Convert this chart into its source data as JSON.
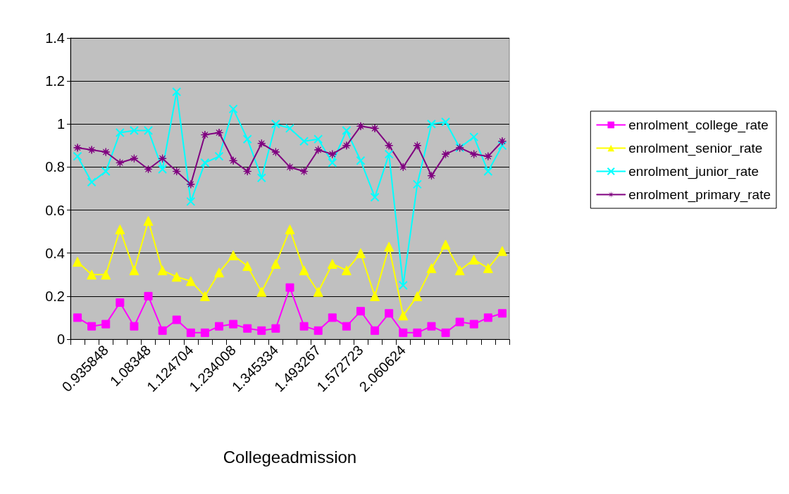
{
  "chart_data": {
    "type": "line",
    "xlabel": "Collegeadmission",
    "categories": [
      null,
      null,
      "0.935848",
      null,
      null,
      "1.08348",
      null,
      null,
      "1.124704",
      null,
      null,
      "1.234008",
      null,
      null,
      "1.345334",
      null,
      null,
      "1.493267",
      null,
      null,
      "1.572723",
      null,
      null,
      "2.060624",
      null,
      null,
      null,
      null,
      null,
      null,
      null
    ],
    "series": [
      {
        "name": "enrolment_college_rate",
        "color": "#ff00ff",
        "marker": "square",
        "values": [
          0.1,
          0.06,
          0.07,
          0.17,
          0.06,
          0.2,
          0.04,
          0.09,
          0.03,
          0.03,
          0.06,
          0.07,
          0.05,
          0.04,
          0.05,
          0.24,
          0.06,
          0.04,
          0.1,
          0.06,
          0.13,
          0.04,
          0.12,
          0.03,
          0.03,
          0.06,
          0.03,
          0.08,
          0.07,
          0.1,
          0.12
        ]
      },
      {
        "name": "enrolment_senior_rate",
        "color": "#ffff00",
        "marker": "triangle",
        "values": [
          0.36,
          0.3,
          0.3,
          0.51,
          0.32,
          0.55,
          0.32,
          0.29,
          0.27,
          0.2,
          0.31,
          0.39,
          0.34,
          0.22,
          0.35,
          0.51,
          0.32,
          0.22,
          0.35,
          0.32,
          0.4,
          0.2,
          0.43,
          0.11,
          0.2,
          0.33,
          0.44,
          0.32,
          0.37,
          0.33,
          0.41
        ]
      },
      {
        "name": "enrolment_junior_rate",
        "color": "#00ffff",
        "marker": "cross",
        "values": [
          0.85,
          0.73,
          0.78,
          0.96,
          0.97,
          0.97,
          0.79,
          1.15,
          0.64,
          0.82,
          0.85,
          1.07,
          0.93,
          0.75,
          1.0,
          0.98,
          0.92,
          0.93,
          0.82,
          0.97,
          0.83,
          0.66,
          0.86,
          0.25,
          0.72,
          1.0,
          1.01,
          0.89,
          0.94,
          0.78,
          0.9
        ]
      },
      {
        "name": "enrolment_primary_rate",
        "color": "#800080",
        "marker": "star",
        "values": [
          0.89,
          0.88,
          0.87,
          0.82,
          0.84,
          0.79,
          0.84,
          0.78,
          0.72,
          0.95,
          0.96,
          0.83,
          0.78,
          0.91,
          0.87,
          0.8,
          0.78,
          0.88,
          0.86,
          0.9,
          0.99,
          0.98,
          0.9,
          0.8,
          0.9,
          0.76,
          0.86,
          0.89,
          0.86,
          0.85,
          0.92
        ]
      }
    ],
    "ylim": [
      0,
      1.4
    ],
    "yticks": [
      0,
      0.2,
      0.4,
      0.6,
      0.8,
      1,
      1.2,
      1.4
    ],
    "grid": "y",
    "legend": "right",
    "line_style": "solid"
  }
}
